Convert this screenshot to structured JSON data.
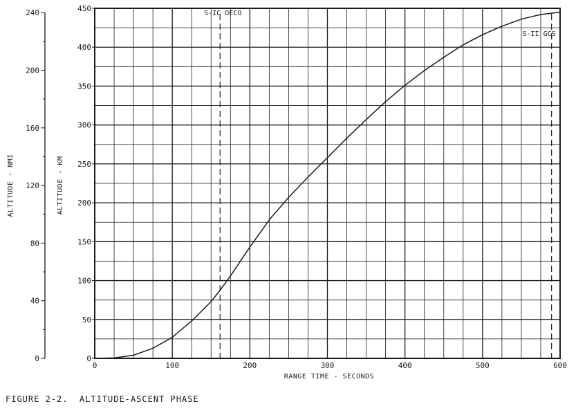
{
  "chart_data": {
    "type": "line",
    "xlabel": "RANGE TIME - SECONDS",
    "ylabel_km": "ALTITUDE - KM",
    "ylabel_nmi": "ALTITUDE - NMI",
    "xlim": [
      0,
      600
    ],
    "ylim_km": [
      0,
      450
    ],
    "ylim_nmi": [
      0,
      243
    ],
    "x_ticks": [
      "0",
      "100",
      "200",
      "300",
      "400",
      "500",
      "600"
    ],
    "y_ticks_km": [
      "0",
      "50",
      "100",
      "150",
      "200",
      "250",
      "300",
      "350",
      "400",
      "450"
    ],
    "y_ticks_nmi": [
      "0",
      "40",
      "80",
      "120",
      "160",
      "200",
      "240"
    ],
    "grid": true,
    "series": [
      {
        "x": [
          0,
          25,
          50,
          75,
          100,
          125,
          150,
          162,
          175,
          200,
          225,
          250,
          275,
          300,
          325,
          350,
          375,
          400,
          425,
          450,
          475,
          500,
          525,
          550,
          575,
          600
        ],
        "y": [
          0,
          0.5,
          4,
          13,
          27,
          48,
          73,
          88,
          106,
          143,
          178,
          207,
          233,
          258,
          283,
          307,
          330,
          351,
          370,
          387,
          403,
          416,
          427,
          436,
          442,
          445
        ]
      }
    ],
    "events": [
      {
        "label": "S-IC OECO",
        "x": 161.6
      },
      {
        "label": "S-II GCS",
        "x": 589
      }
    ]
  },
  "caption": "FIGURE 2-2.  ALTITUDE-ASCENT PHASE"
}
